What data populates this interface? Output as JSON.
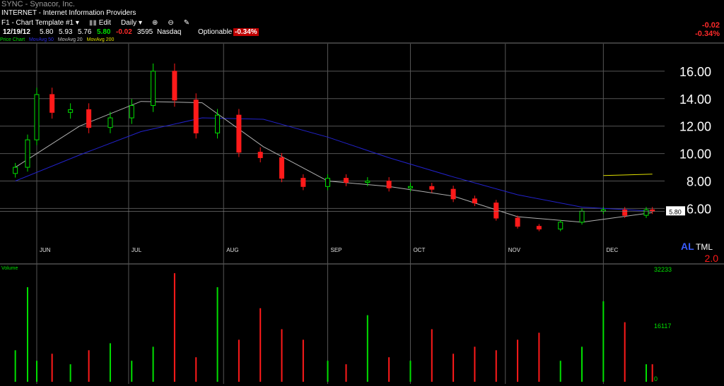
{
  "header": {
    "title": "SYNC - Synacor, Inc.",
    "industry": "INTERNET - Internet Information Providers",
    "template": "F1 - Chart Template #1",
    "edit_label": "Edit",
    "period": "Daily"
  },
  "quote": {
    "date": "12/19/12",
    "open": "5.80",
    "high": "5.93",
    "low": "5.76",
    "close": "5.80",
    "change": "-0.02",
    "volume": "3595",
    "exchange": "Nasdaq",
    "optionable": "Optionable",
    "change_pct": "-0.34%"
  },
  "right_change": {
    "change": "-0.02",
    "pct": "-0.34%"
  },
  "legend": {
    "price": "Price Chart",
    "ma50": "MovAvg 50",
    "ma20": "MovAvg 20",
    "ma200": "MovAvg 200"
  },
  "branding": {
    "al": "AL",
    "tml": "TML",
    "version": "2.0"
  },
  "volume_label": "Volume",
  "colors": {
    "up": "#00e000",
    "down": "#ff1a1a",
    "ma50": "#2222cc",
    "ma20": "#b0b0b0",
    "ma200": "#e0e000",
    "grid": "#555555"
  },
  "chart_data": [
    {
      "type": "line",
      "title": "",
      "candle_style": "candlestick",
      "x_tick_labels": [
        "JUN",
        "JUL",
        "AUG",
        "SEP",
        "OCT",
        "NOV",
        "DEC"
      ],
      "y_tick_labels": [
        "6.00",
        "8.00",
        "10.00",
        "12.00",
        "14.00",
        "16.00"
      ],
      "ylim": [
        3.4,
        18
      ],
      "last_price_label": "5.80",
      "series": [
        {
          "name": "Price Chart",
          "x": [
            "May 25",
            "May 29",
            "Jun 1",
            "Jun 6",
            "Jun 12",
            "Jun 18",
            "Jun 25",
            "Jul 2",
            "Jul 9",
            "Jul 16",
            "Jul 23",
            "Jul 30",
            "Aug 6",
            "Aug 13",
            "Aug 20",
            "Aug 27",
            "Sep 4",
            "Sep 10",
            "Sep 17",
            "Sep 24",
            "Oct 1",
            "Oct 8",
            "Oct 15",
            "Oct 22",
            "Oct 29",
            "Nov 5",
            "Nov 12",
            "Nov 19",
            "Nov 26",
            "Dec 3",
            "Dec 10",
            "Dec 17",
            "Dec 19"
          ],
          "values": [
            9.0,
            11.0,
            14.3,
            13.0,
            13.2,
            11.9,
            12.6,
            13.5,
            16.0,
            13.9,
            11.5,
            12.8,
            10.1,
            9.7,
            8.2,
            7.6,
            8.2,
            7.9,
            8.0,
            7.5,
            7.6,
            7.4,
            6.7,
            6.4,
            5.3,
            4.7,
            4.5,
            5.0,
            5.8,
            5.9,
            5.5,
            5.9,
            5.8
          ]
        },
        {
          "name": "MovAvg 50",
          "x": [
            "May 25",
            "Jun 15",
            "Jul 5",
            "Jul 25",
            "Aug 14",
            "Sep 4",
            "Sep 24",
            "Oct 15",
            "Nov 5",
            "Nov 26",
            "Dec 19"
          ],
          "values": [
            8.0,
            9.9,
            11.6,
            12.6,
            12.5,
            11.2,
            9.7,
            8.3,
            7.0,
            6.1,
            5.8
          ]
        },
        {
          "name": "MovAvg 20",
          "x": [
            "May 25",
            "Jun 15",
            "Jul 5",
            "Jul 25",
            "Aug 14",
            "Sep 4",
            "Sep 24",
            "Oct 15",
            "Nov 5",
            "Nov 26",
            "Dec 19"
          ],
          "values": [
            9.0,
            12.0,
            13.8,
            13.7,
            10.5,
            8.0,
            7.6,
            6.9,
            5.4,
            5.0,
            5.7
          ]
        },
        {
          "name": "MovAvg 200",
          "x": [
            "Dec 3",
            "Dec 19"
          ],
          "values": [
            8.4,
            8.5
          ]
        }
      ]
    },
    {
      "type": "bar",
      "title": "Volume",
      "y_tick_labels": [
        "32233",
        "16117",
        "0"
      ],
      "ylim": [
        0,
        32233
      ],
      "values": [
        9000,
        27000,
        6000,
        8000,
        5000,
        9000,
        11000,
        6000,
        10000,
        31000,
        7000,
        27000,
        12000,
        21000,
        15000,
        12000,
        6000,
        5000,
        19000,
        7000,
        6000,
        15000,
        8000,
        10000,
        9000,
        12000,
        14000,
        6000,
        10000,
        23000,
        17000,
        5000,
        5000
      ]
    }
  ]
}
